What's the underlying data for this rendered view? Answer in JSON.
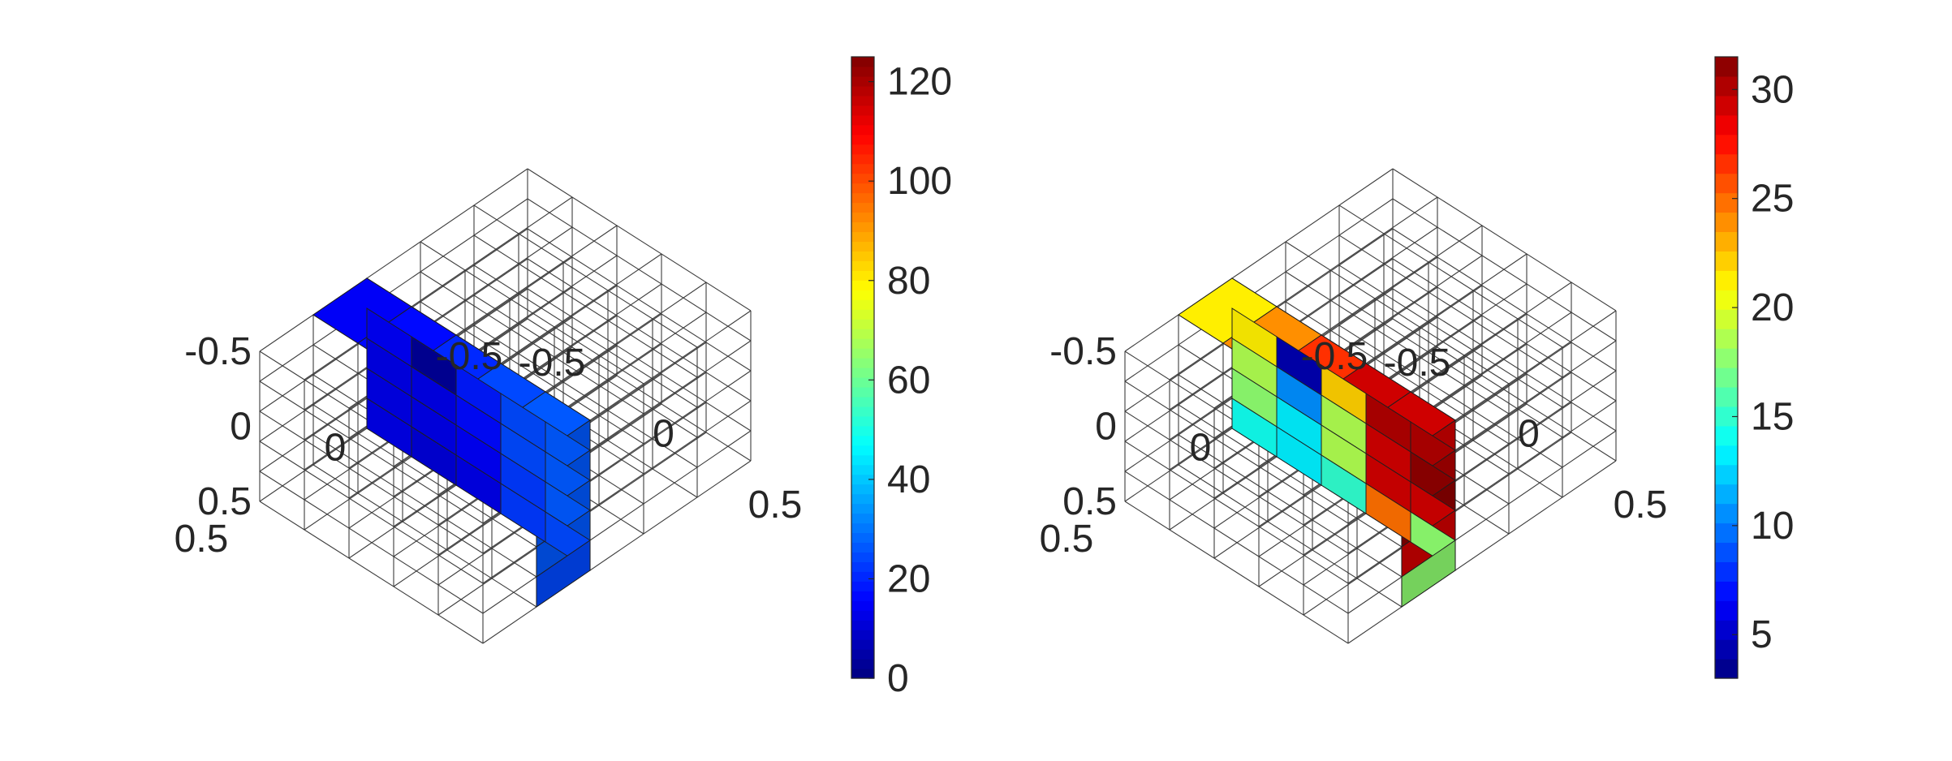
{
  "chart_data": [
    {
      "type": "heatmap",
      "subtype": "3d-voxel-slice",
      "title": "",
      "grid": true,
      "grid_divisions": 5,
      "x_ticks": [
        "-0.5",
        "0",
        "0.5"
      ],
      "y_ticks": [
        "-0.5",
        "0",
        "0.5"
      ],
      "z_ticks": [
        "-0.5",
        "0",
        "0.5"
      ],
      "colormap": "jet",
      "colorbar": {
        "min": 0,
        "max": 125,
        "ticks": [
          0,
          20,
          40,
          60,
          80,
          100,
          120
        ],
        "levels": 64
      },
      "values_top_to_bottom": [
        [
          14,
          17,
          20,
          24,
          27
        ],
        [
          14,
          2,
          18,
          24,
          27
        ],
        [
          13,
          12,
          16,
          24,
          27
        ],
        [
          13,
          12,
          15,
          23,
          26
        ],
        [
          12,
          11,
          13,
          22,
          25
        ]
      ]
    },
    {
      "type": "heatmap",
      "subtype": "3d-voxel-slice",
      "title": "",
      "grid": true,
      "grid_divisions": 5,
      "x_ticks": [
        "-0.5",
        "0",
        "0.5"
      ],
      "y_ticks": [
        "-0.5",
        "0",
        "0.5"
      ],
      "z_ticks": [
        "-0.5",
        "0",
        "0.5"
      ],
      "colormap": "jet",
      "colorbar": {
        "min": 3,
        "max": 31.5,
        "ticks": [
          5,
          10,
          15,
          20,
          25,
          30
        ],
        "levels": 32
      },
      "values_top_to_bottom": [
        [
          21,
          24,
          27,
          29,
          29
        ],
        [
          21,
          4,
          22,
          30,
          30
        ],
        [
          19,
          11,
          19,
          29,
          31
        ],
        [
          18,
          13,
          19,
          29,
          29
        ],
        [
          14,
          13,
          15,
          25,
          18
        ]
      ]
    }
  ]
}
